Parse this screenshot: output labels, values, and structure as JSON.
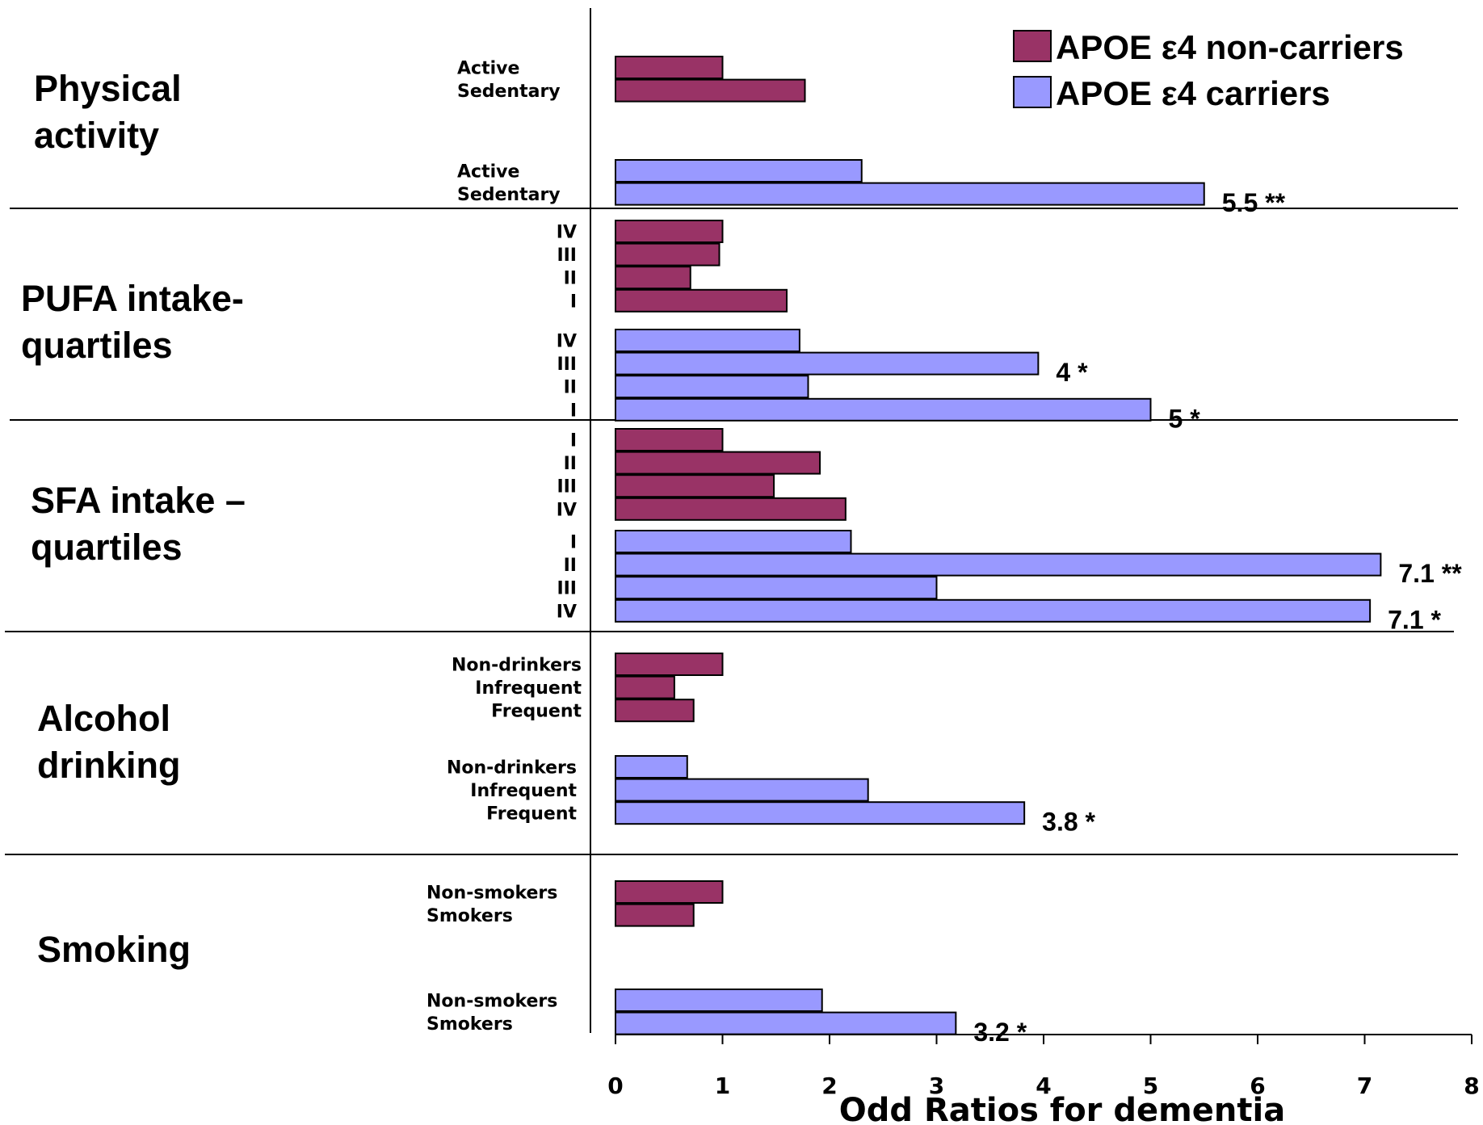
{
  "chart_data": {
    "type": "bar",
    "orientation": "horizontal",
    "xlabel": "Odd Ratios for dementia",
    "xlim": [
      0,
      8
    ],
    "x_ticks": [
      "0",
      "1",
      "2",
      "3",
      "4",
      "5",
      "6",
      "7",
      "8"
    ],
    "grid": false,
    "legend_position": "top-right",
    "legend": [
      {
        "name": "APOE ε4 non-carriers",
        "color": "#993366"
      },
      {
        "name": "APOE ε4 carriers",
        "color": "#9999ff"
      }
    ],
    "groups": [
      {
        "title": [
          "Physical",
          "activity"
        ],
        "series": [
          {
            "name": "APOE ε4 non-carriers",
            "categories": [
              "Active",
              "Sedentary"
            ],
            "values": [
              1.0,
              1.77
            ],
            "annotations": [
              "",
              ""
            ]
          },
          {
            "name": "APOE ε4 carriers",
            "categories": [
              "Active",
              "Sedentary"
            ],
            "values": [
              2.3,
              5.5
            ],
            "annotations": [
              "",
              "5.5 **"
            ]
          }
        ]
      },
      {
        "title": [
          "PUFA intake-",
          "quartiles"
        ],
        "series": [
          {
            "name": "APOE ε4 non-carriers",
            "categories": [
              "IV",
              "III",
              "II",
              "I"
            ],
            "values": [
              1.0,
              0.97,
              0.7,
              1.6
            ],
            "annotations": [
              "",
              "",
              "",
              ""
            ]
          },
          {
            "name": "APOE ε4 carriers",
            "categories": [
              "IV",
              "III",
              "II",
              "I"
            ],
            "values": [
              1.72,
              3.95,
              1.8,
              5.0
            ],
            "annotations": [
              "",
              "4 *",
              "",
              "5 *"
            ]
          }
        ]
      },
      {
        "title": [
          "SFA intake –",
          "quartiles"
        ],
        "series": [
          {
            "name": "APOE ε4 non-carriers",
            "categories": [
              "I",
              "II",
              "III",
              "IV"
            ],
            "values": [
              1.0,
              1.91,
              1.48,
              2.15
            ],
            "annotations": [
              "",
              "",
              "",
              ""
            ]
          },
          {
            "name": "APOE ε4 carriers",
            "categories": [
              "I",
              "II",
              "III",
              "IV"
            ],
            "values": [
              2.2,
              7.15,
              3.0,
              7.05
            ],
            "annotations": [
              "",
              "7.1 **",
              "",
              "7.1 *"
            ]
          }
        ]
      },
      {
        "title": [
          "Alcohol",
          "drinking"
        ],
        "series": [
          {
            "name": "APOE ε4 non-carriers",
            "categories": [
              "Non-drinkers",
              "Infrequent",
              "Frequent"
            ],
            "values": [
              1.0,
              0.55,
              0.73
            ],
            "annotations": [
              "",
              "",
              ""
            ]
          },
          {
            "name": "APOE ε4 carriers",
            "categories": [
              "Non-drinkers",
              "Infrequent",
              "Frequent"
            ],
            "values": [
              0.67,
              2.36,
              3.82
            ],
            "annotations": [
              "",
              "",
              "3.8 *"
            ]
          }
        ]
      },
      {
        "title": [
          "Smoking"
        ],
        "series": [
          {
            "name": "APOE ε4 non-carriers",
            "categories": [
              "Non-smokers",
              "Smokers"
            ],
            "values": [
              1.0,
              0.73
            ],
            "annotations": [
              "",
              ""
            ]
          },
          {
            "name": "APOE ε4 carriers",
            "categories": [
              "Non-smokers",
              "Smokers"
            ],
            "values": [
              1.93,
              3.18
            ],
            "annotations": [
              "",
              "3.2 *"
            ]
          }
        ]
      }
    ]
  }
}
